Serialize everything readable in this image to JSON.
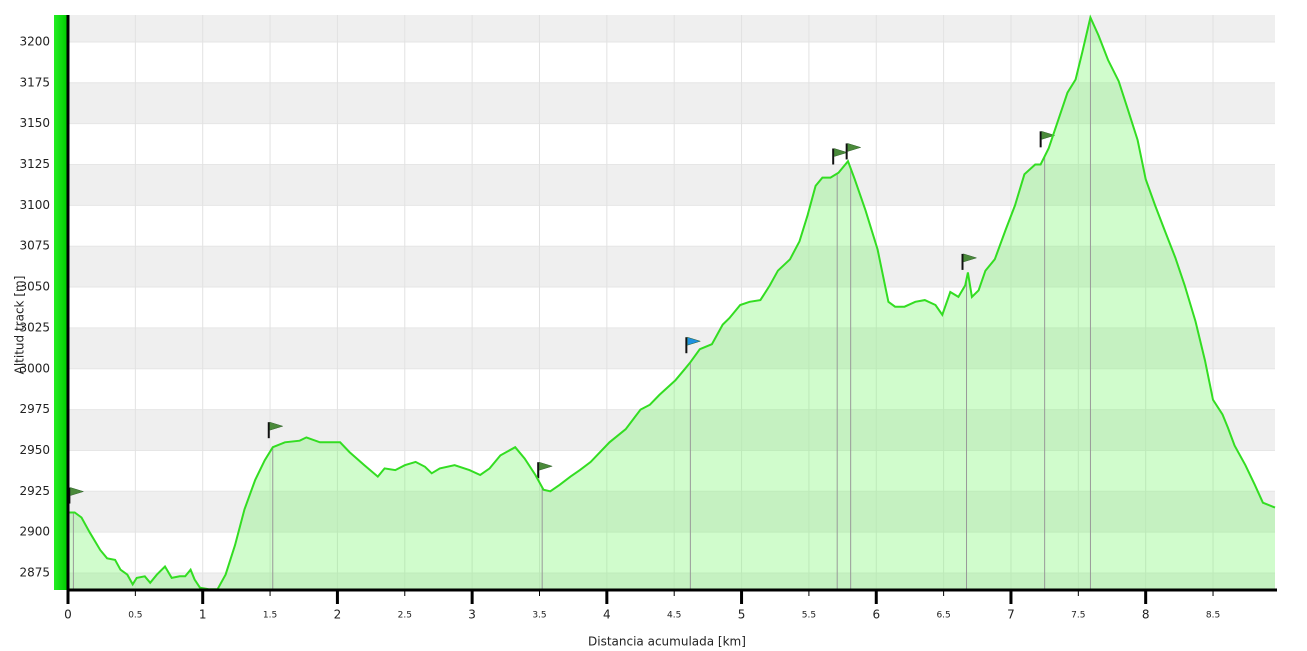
{
  "chart_data": {
    "type": "area",
    "xlabel": "Distancia acumulada [km]",
    "ylabel": "Altitud track [m]",
    "color": "#33dd22",
    "fill": "rgba(120,245,110,0.35)",
    "grid": true,
    "xlim": [
      0,
      8.96
    ],
    "ylim": [
      2864.6,
      3216.5
    ],
    "xticks": [
      0,
      0.5,
      1,
      1.5,
      2,
      2.5,
      3,
      3.5,
      4,
      4.5,
      5,
      5.5,
      6,
      6.5,
      7,
      7.5,
      8,
      8.5
    ],
    "yticks": [
      2875,
      2900,
      2925,
      2950,
      2975,
      3000,
      3025,
      3050,
      3075,
      3100,
      3125,
      3150,
      3175,
      3200
    ],
    "x": [
      0.01,
      0.05,
      0.1,
      0.16,
      0.24,
      0.29,
      0.35,
      0.39,
      0.44,
      0.48,
      0.51,
      0.57,
      0.61,
      0.66,
      0.72,
      0.77,
      0.83,
      0.87,
      0.91,
      0.94,
      0.98,
      1.05,
      1.11,
      1.17,
      1.24,
      1.31,
      1.39,
      1.46,
      1.52,
      1.61,
      1.72,
      1.77,
      1.87,
      2.02,
      2.09,
      2.2,
      2.3,
      2.35,
      2.43,
      2.5,
      2.58,
      2.65,
      2.7,
      2.76,
      2.87,
      2.98,
      3.06,
      3.13,
      3.21,
      3.32,
      3.39,
      3.47,
      3.53,
      3.58,
      3.65,
      3.73,
      3.8,
      3.88,
      3.95,
      4.02,
      4.14,
      4.25,
      4.32,
      4.39,
      4.51,
      4.58,
      4.62,
      4.69,
      4.78,
      4.86,
      4.91,
      4.99,
      5.06,
      5.14,
      5.21,
      5.27,
      5.36,
      5.43,
      5.49,
      5.55,
      5.6,
      5.66,
      5.72,
      5.79,
      5.84,
      5.92,
      6.01,
      6.09,
      6.14,
      6.21,
      6.29,
      6.36,
      6.44,
      6.49,
      6.55,
      6.61,
      6.66,
      6.68,
      6.71,
      6.76,
      6.81,
      6.88,
      6.96,
      7.03,
      7.1,
      7.18,
      7.22,
      7.28,
      7.35,
      7.42,
      7.48,
      7.53,
      7.59,
      7.65,
      7.72,
      7.8,
      7.87,
      7.94,
      8.0,
      8.07,
      8.14,
      8.22,
      8.29,
      8.37,
      8.44,
      8.5,
      8.57,
      8.61,
      8.66,
      8.74,
      8.81,
      8.87,
      8.96
    ],
    "y": [
      2912,
      2912,
      2909,
      2900,
      2889,
      2884,
      2883,
      2877,
      2874,
      2868,
      2872,
      2873,
      2869,
      2874,
      2879,
      2872,
      2873,
      2873,
      2877,
      2871,
      2866,
      2865,
      2865,
      2874,
      2892,
      2914,
      2932,
      2944,
      2952,
      2955,
      2956,
      2958,
      2955,
      2955,
      2949,
      2941,
      2934,
      2939,
      2938,
      2941,
      2943,
      2940,
      2936,
      2939,
      2941,
      2938,
      2935,
      2939,
      2947,
      2952,
      2945,
      2935,
      2926,
      2925,
      2929,
      2934,
      2938,
      2943,
      2949,
      2955,
      2963,
      2975,
      2978,
      2984,
      2993,
      3000,
      3004,
      3012,
      3015,
      3027,
      3031,
      3039,
      3041,
      3042,
      3051,
      3060,
      3067,
      3078,
      3094,
      3112,
      3117,
      3117,
      3120,
      3127,
      3116,
      3097,
      3073,
      3041,
      3038,
      3038,
      3041,
      3042,
      3039,
      3033,
      3047,
      3044,
      3051,
      3059,
      3044,
      3048,
      3060,
      3067,
      3085,
      3100,
      3119,
      3125,
      3125,
      3135,
      3152,
      3169,
      3177,
      3194,
      3215,
      3204,
      3189,
      3176,
      3158,
      3140,
      3116,
      3100,
      3085,
      3068,
      3051,
      3029,
      3005,
      2981,
      2972,
      2964,
      2953,
      2941,
      2929,
      2918,
      2915
    ],
    "waypoints": [
      {
        "x": 0.04,
        "flag": "#4a8a3a"
      },
      {
        "x": 1.52,
        "flag": "#4a8a3a"
      },
      {
        "x": 3.52,
        "flag": "#4a8a3a"
      },
      {
        "x": 4.62,
        "flag": "#1e90e0"
      },
      {
        "x": 5.71,
        "flag": "#4a8a3a"
      },
      {
        "x": 5.81,
        "flag": "#4a8a3a"
      },
      {
        "x": 6.67,
        "flag": "#4a8a3a"
      },
      {
        "x": 7.25,
        "flag": "#4a8a3a"
      },
      {
        "x": 7.59
      }
    ]
  }
}
